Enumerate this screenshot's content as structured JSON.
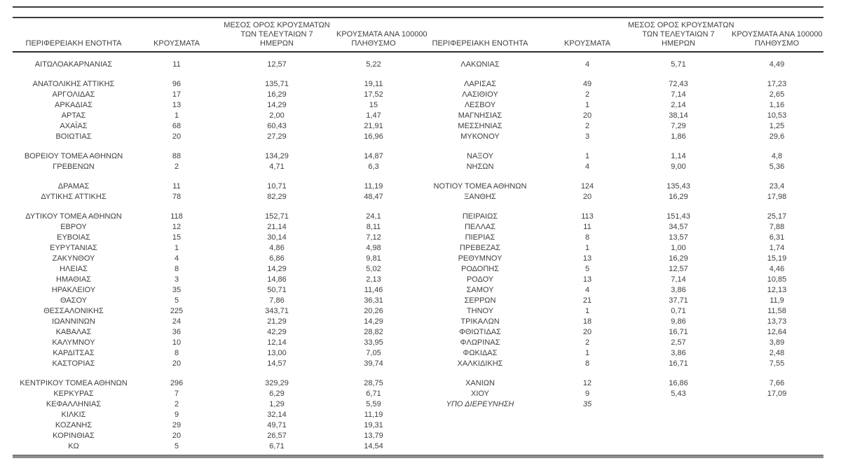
{
  "colors": {
    "text": "#3f3f3f",
    "rule": "#3c3c3c",
    "header_underline": "#2e2e2e",
    "bottom_bar": "#8d8d8d",
    "background": "#ffffff"
  },
  "table": {
    "column_headers": {
      "region": "ΠΕΡΙΦΕΡΕΙΑΚΗ ΕΝΟΤΗΤΑ",
      "cases": "ΚΡΟΥΣΜΑΤΑ",
      "avg_7day_lines": [
        "ΜΕΣΟΣ ΟΡΟΣ ΚΡΟΥΣΜΑΤΩΝ",
        "ΤΩΝ ΤΕΛΕΥΤΑΙΩΝ 7",
        "ΗΜΕΡΩΝ"
      ],
      "per_100k_lines": [
        "ΚΡΟΥΣΜΑΤΑ ΑΝΑ 100000",
        "ΠΛΗΘΥΣΜΟ"
      ]
    },
    "rows": [
      {
        "left": [
          "ΑΙΤΩΛΟΑΚΑΡΝΑΝΙΑΣ",
          "11",
          "12,57",
          "5,22"
        ],
        "right": [
          "ΛΑΚΩΝΙΑΣ",
          "4",
          "5,71",
          "4,49"
        ],
        "gap_after": true
      },
      {
        "left": [
          "ΑΝΑΤΟΛΙΚΗΣ ΑΤΤΙΚΗΣ",
          "96",
          "135,71",
          "19,11"
        ],
        "right": [
          "ΛΑΡΙΣΑΣ",
          "49",
          "72,43",
          "17,23"
        ]
      },
      {
        "left": [
          "ΑΡΓΟΛΙΔΑΣ",
          "17",
          "16,29",
          "17,52"
        ],
        "right": [
          "ΛΑΣΙΘΙΟΥ",
          "2",
          "7,14",
          "2,65"
        ]
      },
      {
        "left": [
          "ΑΡΚΑΔΙΑΣ",
          "13",
          "14,29",
          "15"
        ],
        "right": [
          "ΛΕΣΒΟΥ",
          "1",
          "2,14",
          "1,16"
        ]
      },
      {
        "left": [
          "ΑΡΤΑΣ",
          "1",
          "2,00",
          "1,47"
        ],
        "right": [
          "ΜΑΓΝΗΣΙΑΣ",
          "20",
          "38,14",
          "10,53"
        ]
      },
      {
        "left": [
          "ΑΧΑΪΑΣ",
          "68",
          "60,43",
          "21,91"
        ],
        "right": [
          "ΜΕΣΣΗΝΙΑΣ",
          "2",
          "7,29",
          "1,25"
        ]
      },
      {
        "left": [
          "ΒΟΙΩΤΙΑΣ",
          "20",
          "27,29",
          "16,96"
        ],
        "right": [
          "ΜΥΚΟΝΟΥ",
          "3",
          "1,86",
          "29,6"
        ],
        "gap_after": true
      },
      {
        "left": [
          "ΒΟΡΕΙΟΥ ΤΟΜΕΑ ΑΘΗΝΩΝ",
          "88",
          "134,29",
          "14,87"
        ],
        "right": [
          "ΝΑΞΟΥ",
          "1",
          "1,14",
          "4,8"
        ]
      },
      {
        "left": [
          "ΓΡΕΒΕΝΩΝ",
          "2",
          "4,71",
          "6,3"
        ],
        "right": [
          "ΝΗΣΩΝ",
          "4",
          "9,00",
          "5,36"
        ],
        "gap_after": true
      },
      {
        "left": [
          "ΔΡΑΜΑΣ",
          "11",
          "10,71",
          "11,19"
        ],
        "right": [
          "ΝΟΤΙΟΥ ΤΟΜΕΑ ΑΘΗΝΩΝ",
          "124",
          "135,43",
          "23,4"
        ]
      },
      {
        "left": [
          "ΔΥΤΙΚΗΣ ΑΤΤΙΚΗΣ",
          "78",
          "82,29",
          "48,47"
        ],
        "right": [
          "ΞΑΝΘΗΣ",
          "20",
          "16,29",
          "17,98"
        ],
        "gap_after": true
      },
      {
        "left": [
          "ΔΥΤΙΚΟΥ ΤΟΜΕΑ ΑΘΗΝΩΝ",
          "118",
          "152,71",
          "24,1"
        ],
        "right": [
          "ΠΕΙΡΑΙΩΣ",
          "113",
          "151,43",
          "25,17"
        ]
      },
      {
        "left": [
          "ΕΒΡΟΥ",
          "12",
          "21,14",
          "8,11"
        ],
        "right": [
          "ΠΕΛΛΑΣ",
          "11",
          "34,57",
          "7,88"
        ]
      },
      {
        "left": [
          "ΕΥΒΟΙΑΣ",
          "15",
          "30,14",
          "7,12"
        ],
        "right": [
          "ΠΙΕΡΙΑΣ",
          "8",
          "13,57",
          "6,31"
        ]
      },
      {
        "left": [
          "ΕΥΡΥΤΑΝΙΑΣ",
          "1",
          "4,86",
          "4,98"
        ],
        "right": [
          "ΠΡΕΒΕΖΑΣ",
          "1",
          "1,00",
          "1,74"
        ]
      },
      {
        "left": [
          "ΖΑΚΥΝΘΟΥ",
          "4",
          "6,86",
          "9,81"
        ],
        "right": [
          "ΡΕΘΥΜΝΟΥ",
          "13",
          "16,29",
          "15,19"
        ]
      },
      {
        "left": [
          "ΗΛΕΙΑΣ",
          "8",
          "14,29",
          "5,02"
        ],
        "right": [
          "ΡΟΔΟΠΗΣ",
          "5",
          "12,57",
          "4,46"
        ]
      },
      {
        "left": [
          "ΗΜΑΘΙΑΣ",
          "3",
          "14,86",
          "2,13"
        ],
        "right": [
          "ΡΟΔΟΥ",
          "13",
          "7,14",
          "10,85"
        ]
      },
      {
        "left": [
          "ΗΡΑΚΛΕΙΟΥ",
          "35",
          "50,71",
          "11,46"
        ],
        "right": [
          "ΣΑΜΟΥ",
          "4",
          "3,86",
          "12,13"
        ]
      },
      {
        "left": [
          "ΘΑΣΟΥ",
          "5",
          "7,86",
          "36,31"
        ],
        "right": [
          "ΣΕΡΡΩΝ",
          "21",
          "37,71",
          "11,9"
        ]
      },
      {
        "left": [
          "ΘΕΣΣΑΛΟΝΙΚΗΣ",
          "225",
          "343,71",
          "20,26"
        ],
        "right": [
          "ΤΗΝΟΥ",
          "1",
          "0,71",
          "11,58"
        ]
      },
      {
        "left": [
          "ΙΩΑΝΝΙΝΩΝ",
          "24",
          "21,29",
          "14,29"
        ],
        "right": [
          "ΤΡΙΚΑΛΩΝ",
          "18",
          "9,86",
          "13,73"
        ]
      },
      {
        "left": [
          "ΚΑΒΑΛΑΣ",
          "36",
          "42,29",
          "28,82"
        ],
        "right": [
          "ΦΘΙΩΤΙΔΑΣ",
          "20",
          "16,71",
          "12,64"
        ]
      },
      {
        "left": [
          "ΚΑΛΥΜΝΟΥ",
          "10",
          "12,14",
          "33,95"
        ],
        "right": [
          "ΦΛΩΡΙΝΑΣ",
          "2",
          "2,57",
          "3,89"
        ]
      },
      {
        "left": [
          "ΚΑΡΔΙΤΣΑΣ",
          "8",
          "13,00",
          "7,05"
        ],
        "right": [
          "ΦΩΚΙΔΑΣ",
          "1",
          "3,86",
          "2,48"
        ]
      },
      {
        "left": [
          "ΚΑΣΤΟΡΙΑΣ",
          "20",
          "14,57",
          "39,74"
        ],
        "right": [
          "ΧΑΛΚΙΔΙΚΗΣ",
          "8",
          "16,71",
          "7,55"
        ],
        "gap_after": true
      },
      {
        "left": [
          "ΚΕΝΤΡΙΚΟΥ ΤΟΜΕΑ ΑΘΗΝΩΝ",
          "296",
          "329,29",
          "28,75"
        ],
        "right": [
          "ΧΑΝΙΩΝ",
          "12",
          "16,86",
          "7,66"
        ]
      },
      {
        "left": [
          "ΚΕΡΚΥΡΑΣ",
          "7",
          "6,29",
          "6,71"
        ],
        "right": [
          "ΧΙΟΥ",
          "9",
          "5,43",
          "17,09"
        ]
      },
      {
        "left": [
          "ΚΕΦΑΛΛΗΝΙΑΣ",
          "2",
          "1,29",
          "5,59"
        ],
        "right": [
          "ΥΠΟ ΔΙΕΡΕΥΝΗΣΗ",
          "35",
          "",
          ""
        ],
        "right_italic": true
      },
      {
        "left": [
          "ΚΙΛΚΙΣ",
          "9",
          "32,14",
          "11,19"
        ],
        "right": [
          "",
          "",
          "",
          ""
        ]
      },
      {
        "left": [
          "ΚΟΖΑΝΗΣ",
          "29",
          "49,71",
          "19,31"
        ],
        "right": [
          "",
          "",
          "",
          ""
        ]
      },
      {
        "left": [
          "ΚΟΡΙΝΘΙΑΣ",
          "20",
          "26,57",
          "13,79"
        ],
        "right": [
          "",
          "",
          "",
          ""
        ]
      },
      {
        "left": [
          "ΚΩ",
          "5",
          "6,71",
          "14,54"
        ],
        "right": [
          "",
          "",
          "",
          ""
        ]
      }
    ]
  }
}
